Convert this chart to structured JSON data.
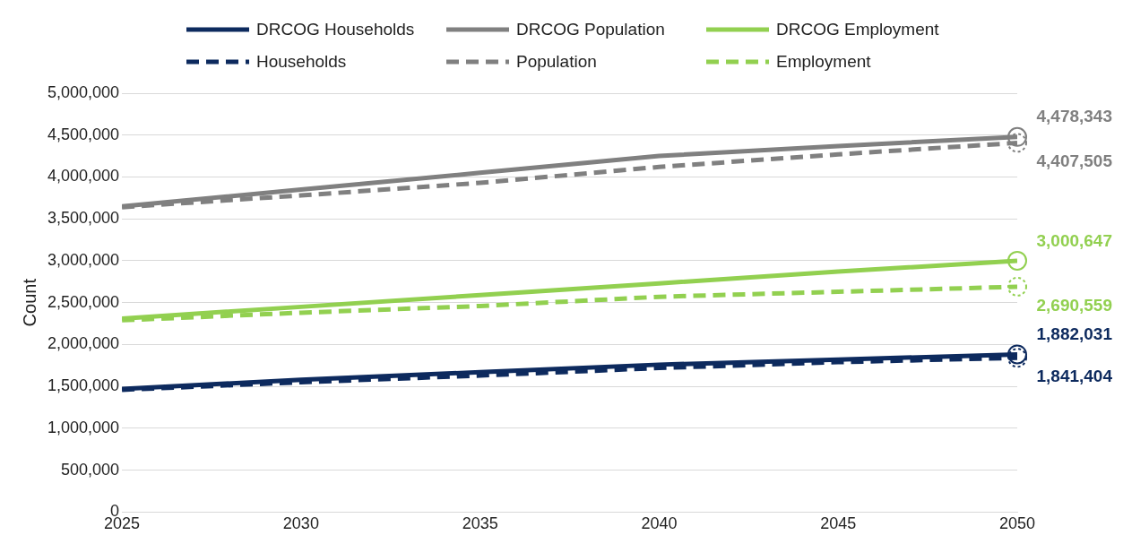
{
  "chart_data": {
    "type": "line",
    "ylabel": "Count",
    "x": [
      2025,
      2030,
      2035,
      2040,
      2045,
      2050
    ],
    "xlim": [
      2025,
      2050
    ],
    "xticks": [
      2025,
      2030,
      2035,
      2040,
      2045,
      2050
    ],
    "ylim": [
      0,
      5000000
    ],
    "yticks": [
      0,
      {
        "value": 500000,
        "label": "500,000"
      },
      {
        "value": 1000000,
        "label": "1,000,000"
      },
      {
        "value": 1500000,
        "label": "1,500,000"
      },
      {
        "value": 2000000,
        "label": "2,000,000"
      },
      {
        "value": 2500000,
        "label": "2,500,000"
      },
      {
        "value": 3000000,
        "label": "3,000,000"
      },
      {
        "value": 3500000,
        "label": "3,500,000"
      },
      {
        "value": 4000000,
        "label": "4,000,000"
      },
      {
        "value": 4500000,
        "label": "4,500,000"
      },
      {
        "value": 5000000,
        "label": "5,000,000"
      }
    ],
    "grid": "y",
    "legend": "top",
    "series": [
      {
        "name": "DRCOG Households",
        "color": "#0d2a5e",
        "line_style": "solid",
        "values": [
          1470000,
          1580000,
          1670000,
          1760000,
          1820000,
          1882031
        ],
        "value_labels": [
          null,
          null,
          null,
          null,
          null,
          "1,882,031"
        ]
      },
      {
        "name": "DRCOG Population",
        "color": "#808080",
        "line_style": "solid",
        "values": [
          3650000,
          3850000,
          4050000,
          4250000,
          4370000,
          4478343
        ],
        "value_labels": [
          null,
          null,
          null,
          null,
          null,
          "4,478,343"
        ]
      },
      {
        "name": "DRCOG Employment",
        "color": "#92d050",
        "line_style": "solid",
        "values": [
          2310000,
          2450000,
          2590000,
          2730000,
          2870000,
          3000647
        ],
        "value_labels": [
          null,
          null,
          null,
          null,
          null,
          "3,000,647"
        ]
      },
      {
        "name": "Households",
        "color": "#0d2a5e",
        "line_style": "dashed",
        "values": [
          1460000,
          1550000,
          1630000,
          1720000,
          1790000,
          1841404
        ],
        "value_labels": [
          null,
          null,
          null,
          null,
          null,
          "1,841,404"
        ]
      },
      {
        "name": "Population",
        "color": "#808080",
        "line_style": "dashed",
        "values": [
          3640000,
          3780000,
          3930000,
          4120000,
          4270000,
          4407505
        ],
        "value_labels": [
          null,
          null,
          null,
          null,
          null,
          "4,407,505"
        ]
      },
      {
        "name": "Employment",
        "color": "#92d050",
        "line_style": "dashed",
        "values": [
          2290000,
          2380000,
          2460000,
          2570000,
          2630000,
          2690559
        ],
        "value_labels": [
          null,
          null,
          null,
          null,
          null,
          "2,690,559"
        ]
      }
    ]
  }
}
